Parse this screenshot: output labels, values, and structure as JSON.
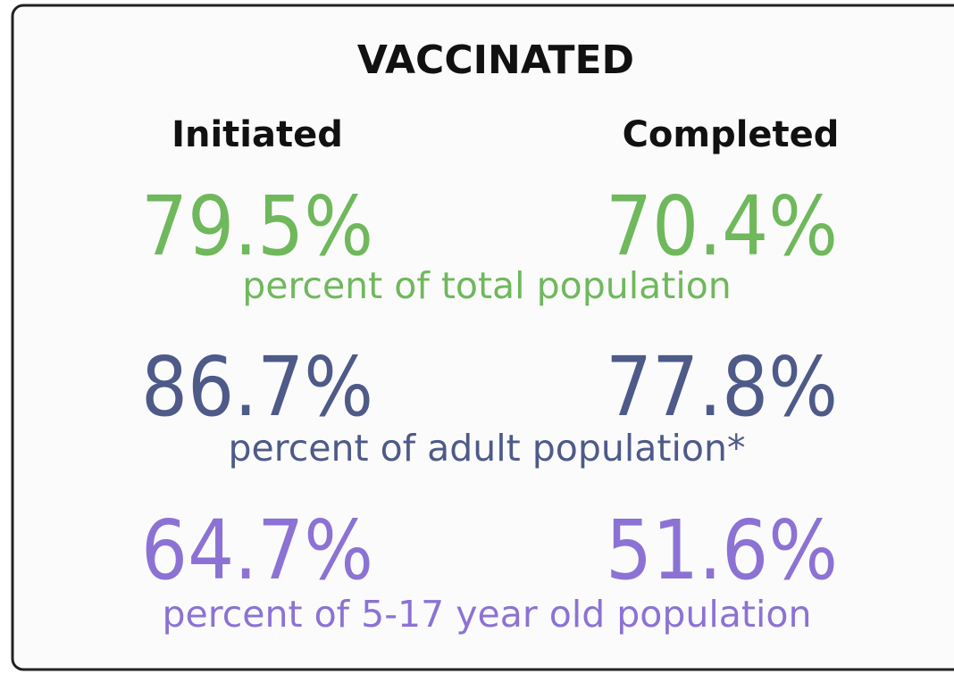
{
  "card": {
    "title": "VACCINATED",
    "columns": [
      "Initiated",
      "Completed"
    ],
    "rows": [
      {
        "initiated": "79.5%",
        "completed": "70.4%",
        "label": "percent of total population",
        "color": "#6fb85c"
      },
      {
        "initiated": "86.7%",
        "completed": "77.8%",
        "label": "percent of adult population*",
        "color": "#4e5a88"
      },
      {
        "initiated": "64.7%",
        "completed": "51.6%",
        "label": "percent of 5-17 year old population",
        "color": "#8c72d4"
      }
    ]
  }
}
